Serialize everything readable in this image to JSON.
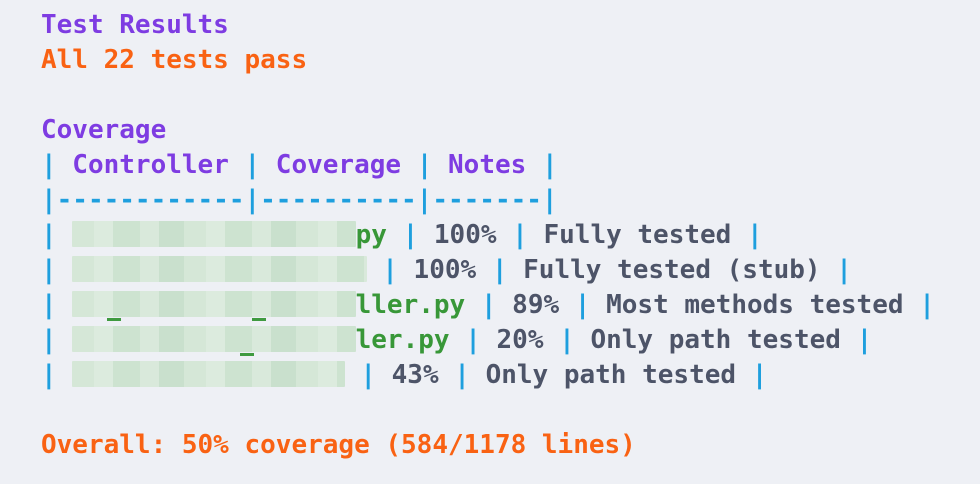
{
  "colors": {
    "bg": "#eef0f5",
    "purple": "#7e3ce2",
    "orange": "#f96213",
    "blue": "#1e9fde",
    "slate": "#4d5468",
    "green": "#389738"
  },
  "test_results": {
    "title": "Test Results",
    "summary": "All 22 tests pass"
  },
  "coverage": {
    "title": "Coverage",
    "table": {
      "header_cells": [
        "Controller",
        "Coverage",
        "Notes"
      ],
      "separator": "|------------|----------|-------|",
      "rows": [
        {
          "redacted_chars": 18.1,
          "visible_name": "py",
          "coverage": "100%",
          "notes": "Fully tested",
          "underscore_offsets_ch": []
        },
        {
          "redacted_chars": 18.8,
          "visible_name": "",
          "coverage": "100%",
          "notes": "Fully tested (stub)",
          "underscore_offsets_ch": []
        },
        {
          "redacted_chars": 18.1,
          "visible_name": "ller.py",
          "coverage": "89%",
          "notes": "Most methods tested",
          "underscore_offsets_ch": [
            2.2,
            11.5
          ]
        },
        {
          "redacted_chars": 18.1,
          "visible_name": "ler.py",
          "coverage": "20%",
          "notes": "Only path tested",
          "underscore_offsets_ch": [
            10.7
          ]
        },
        {
          "redacted_chars": 17.4,
          "visible_name": "",
          "coverage": "43%",
          "notes": "Only path tested",
          "underscore_offsets_ch": []
        }
      ]
    }
  },
  "overall": {
    "text": "Overall: 50% coverage (584/1178 lines)"
  }
}
